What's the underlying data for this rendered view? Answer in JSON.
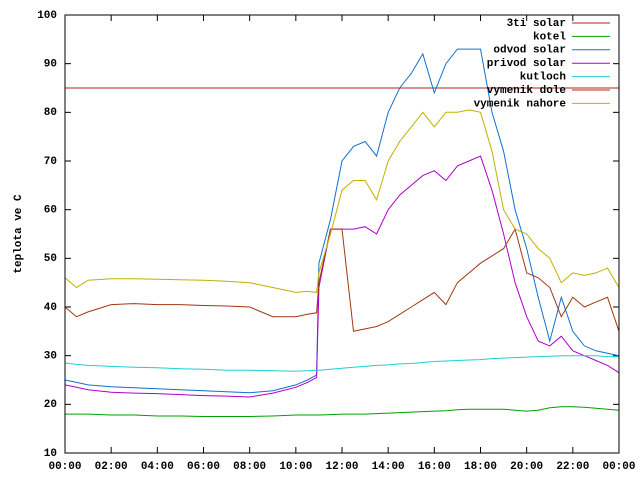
{
  "chart_data": {
    "type": "line",
    "y_label": "teplota ve C",
    "x": [
      0,
      0.5,
      1,
      2,
      3,
      4,
      5,
      6,
      7,
      8,
      9,
      10,
      10.5,
      10.9,
      11,
      11.5,
      12,
      12.5,
      13,
      13.5,
      14,
      14.5,
      15,
      15.5,
      16,
      16.5,
      17,
      17.5,
      18,
      18.5,
      19,
      19.5,
      20,
      20.5,
      21,
      21.5,
      22,
      22.5,
      23,
      23.5,
      24
    ],
    "xlim": [
      0,
      24
    ],
    "xticks": [
      {
        "value": 0,
        "label": "00:00"
      },
      {
        "value": 2,
        "label": "02:00"
      },
      {
        "value": 4,
        "label": "04:00"
      },
      {
        "value": 6,
        "label": "06:00"
      },
      {
        "value": 8,
        "label": "08:00"
      },
      {
        "value": 10,
        "label": "10:00"
      },
      {
        "value": 12,
        "label": "12:00"
      },
      {
        "value": 14,
        "label": "14:00"
      },
      {
        "value": 16,
        "label": "16:00"
      },
      {
        "value": 18,
        "label": "18:00"
      },
      {
        "value": 20,
        "label": "20:00"
      },
      {
        "value": 22,
        "label": "22:00"
      },
      {
        "value": 24,
        "label": "00:00"
      }
    ],
    "ylim": [
      10,
      100
    ],
    "yticks": [
      10,
      20,
      30,
      40,
      50,
      60,
      70,
      80,
      90,
      100
    ],
    "legend": "top-right",
    "series": [
      {
        "name": "3ti solar",
        "color": "#b02020",
        "values": [
          85,
          85,
          85,
          85,
          85,
          85,
          85,
          85,
          85,
          85,
          85,
          85,
          85,
          85,
          85,
          85,
          85,
          85,
          85,
          85,
          85,
          85,
          85,
          85,
          85,
          85,
          85,
          85,
          85,
          85,
          85,
          85,
          85,
          85,
          85,
          85,
          85,
          85,
          85,
          85,
          85
        ]
      },
      {
        "name": "kotel",
        "color": "#00a000",
        "values": [
          18,
          18,
          18,
          17.8,
          17.8,
          17.6,
          17.6,
          17.5,
          17.5,
          17.5,
          17.6,
          17.8,
          17.8,
          17.8,
          17.8,
          17.9,
          18,
          18,
          18,
          18.1,
          18.2,
          18.3,
          18.4,
          18.5,
          18.6,
          18.7,
          18.9,
          19,
          19,
          19,
          19,
          18.8,
          18.6,
          18.8,
          19.3,
          19.5,
          19.5,
          19.4,
          19.2,
          19,
          18.8
        ]
      },
      {
        "name": "odvod solar",
        "color": "#1070d0",
        "values": [
          25,
          24.5,
          24,
          23.6,
          23.4,
          23.2,
          23,
          22.8,
          22.6,
          22.4,
          22.8,
          24,
          25,
          26,
          49,
          58,
          70,
          73,
          74,
          71,
          80,
          85,
          88,
          92,
          84,
          90,
          93,
          93,
          93,
          80,
          72,
          60,
          52,
          42,
          33,
          42,
          35,
          32,
          31,
          30.5,
          30
        ]
      },
      {
        "name": "privod solar",
        "color": "#b000c8",
        "values": [
          24,
          23.5,
          23,
          22.5,
          22.3,
          22.2,
          22,
          21.8,
          21.7,
          21.5,
          22.3,
          23.5,
          24.5,
          25.5,
          44,
          56,
          56,
          56,
          56.5,
          55,
          60,
          63,
          65,
          67,
          68,
          66,
          69,
          70,
          71,
          64,
          55,
          45,
          38,
          33,
          32,
          34,
          31,
          30,
          29,
          28,
          26.5
        ]
      },
      {
        "name": "kutloch",
        "color": "#20d0d0",
        "values": [
          28.5,
          28.2,
          28,
          27.8,
          27.6,
          27.5,
          27.3,
          27.2,
          27,
          27,
          26.9,
          26.8,
          26.9,
          27,
          27,
          27.2,
          27.4,
          27.6,
          27.8,
          28,
          28.1,
          28.3,
          28.4,
          28.6,
          28.8,
          28.9,
          29,
          29.1,
          29.2,
          29.4,
          29.5,
          29.6,
          29.7,
          29.8,
          29.9,
          30,
          30,
          30,
          30,
          29.8,
          29.8
        ]
      },
      {
        "name": "vymenik dole",
        "color": "#a03810",
        "values": [
          40,
          38,
          39,
          40.5,
          40.7,
          40.5,
          40.5,
          40.3,
          40.2,
          40,
          38,
          38,
          38.5,
          38.8,
          45,
          56,
          56,
          35,
          35.5,
          36,
          37,
          38.5,
          40,
          41.5,
          43,
          40.5,
          45,
          47,
          49,
          50.5,
          52,
          56,
          47,
          46,
          44,
          38,
          42,
          40,
          41,
          42,
          35
        ]
      },
      {
        "name": "vymenik nahore",
        "color": "#c0b000",
        "values": [
          46,
          44,
          45.5,
          45.8,
          45.8,
          45.7,
          45.6,
          45.5,
          45.3,
          45,
          44,
          43,
          43.2,
          43,
          47,
          55,
          64,
          66,
          66,
          62,
          70,
          74,
          77,
          80,
          77,
          80,
          80,
          80.5,
          80,
          72,
          60,
          56,
          55,
          52,
          50,
          45,
          47,
          46.5,
          47,
          48,
          44
        ]
      }
    ]
  }
}
